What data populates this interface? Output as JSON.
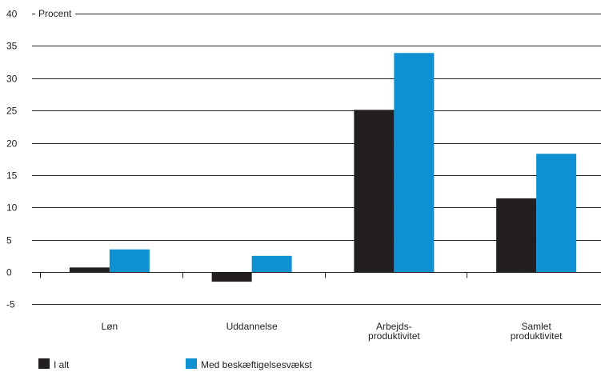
{
  "chart_data": {
    "type": "bar",
    "ylabel": "Procent",
    "ylim": [
      -5,
      40
    ],
    "yticks": [
      -5,
      0,
      5,
      10,
      15,
      20,
      25,
      30,
      35,
      40
    ],
    "grid": true,
    "categories": [
      [
        "Løn"
      ],
      [
        "Uddannelse"
      ],
      [
        "Arbejds-",
        "produktivitet"
      ],
      [
        "Samlet",
        "produktivitet"
      ]
    ],
    "series": [
      {
        "name": "I alt",
        "color": "#231f20",
        "values": [
          0.7,
          -1.5,
          25.1,
          11.4
        ]
      },
      {
        "name": "Med beskæftigelsesvækst",
        "color": "#0f90d2",
        "values": [
          3.5,
          2.5,
          33.9,
          18.3
        ]
      }
    ],
    "legend_position": "bottom-left"
  }
}
